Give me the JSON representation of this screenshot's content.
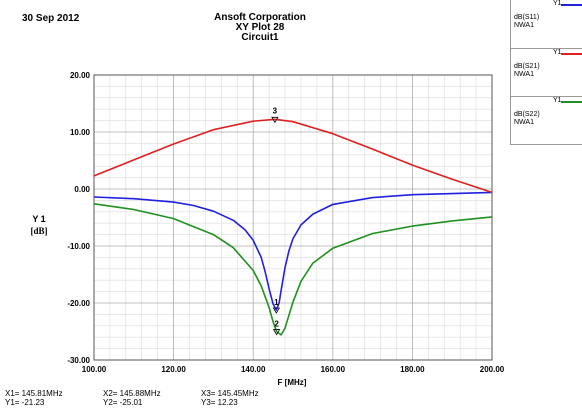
{
  "header": {
    "date": "30 Sep 2012",
    "company": "Ansoft Corporation",
    "plot_name": "XY Plot 28",
    "circuit": "Circuit1"
  },
  "legend": [
    {
      "axis": "Y1",
      "trace": "dB(S11)",
      "source": "NWA1",
      "color": "#2020e0"
    },
    {
      "axis": "Y1",
      "trace": "dB(S21)",
      "source": "NWA1",
      "color": "#e02020"
    },
    {
      "axis": "Y1",
      "trace": "dB(S22)",
      "source": "NWA1",
      "color": "#209020"
    }
  ],
  "markers": [
    {
      "x_label": "X1= 145.81MHz",
      "y_label": "Y1= -21.23",
      "id": "1"
    },
    {
      "x_label": "X2= 145.88MHz",
      "y_label": "Y2= -25.01",
      "id": "2"
    },
    {
      "x_label": "X3= 145.45MHz",
      "y_label": "Y3= 12.23",
      "id": "3"
    }
  ],
  "chart_data": {
    "type": "line",
    "xlabel": "F [MHz]",
    "ylabel": "Y 1",
    "ylabel_unit": "[dB]",
    "xlim": [
      100,
      200
    ],
    "ylim": [
      -30,
      20
    ],
    "x_ticks": [
      "100.00",
      "120.00",
      "140.00",
      "160.00",
      "180.00",
      "200.00"
    ],
    "y_ticks": [
      "20.00",
      "10.00",
      "0.00",
      "-10.00",
      "-20.00",
      "-30.00"
    ],
    "grid": true,
    "series": [
      {
        "name": "dB(S11)",
        "color": "#2020e0",
        "x": [
          100,
          110,
          120,
          125,
          130,
          135,
          138,
          140,
          142,
          143,
          144,
          145,
          145.81,
          146.5,
          147,
          148,
          149,
          150,
          152,
          155,
          160,
          170,
          180,
          190,
          200
        ],
        "y": [
          -1.4,
          -1.7,
          -2.3,
          -2.9,
          -3.9,
          -5.5,
          -7.2,
          -9.0,
          -12.0,
          -14.5,
          -17.5,
          -20.2,
          -21.23,
          -20.0,
          -17.8,
          -13.8,
          -10.8,
          -8.7,
          -6.3,
          -4.4,
          -2.7,
          -1.5,
          -1.0,
          -0.8,
          -0.6
        ]
      },
      {
        "name": "dB(S21)",
        "color": "#e02020",
        "x": [
          100,
          110,
          120,
          130,
          140,
          145.45,
          150,
          160,
          170,
          180,
          190,
          200
        ],
        "y": [
          2.3,
          5.1,
          7.9,
          10.4,
          11.9,
          12.23,
          11.8,
          9.7,
          7.0,
          4.2,
          1.7,
          -0.6
        ]
      },
      {
        "name": "dB(S22)",
        "color": "#209020",
        "x": [
          100,
          110,
          120,
          130,
          135,
          140,
          142,
          144,
          145,
          145.88,
          147,
          148,
          150,
          152,
          155,
          160,
          170,
          180,
          190,
          200
        ],
        "y": [
          -2.6,
          -3.6,
          -5.2,
          -8.0,
          -10.3,
          -14.3,
          -17.0,
          -20.8,
          -23.3,
          -25.01,
          -25.6,
          -24.4,
          -19.8,
          -16.2,
          -13.0,
          -10.4,
          -7.8,
          -6.5,
          -5.6,
          -4.9
        ]
      }
    ],
    "marker_points": [
      {
        "label": "1",
        "x": 145.81,
        "y": -21.23
      },
      {
        "label": "2",
        "x": 145.88,
        "y": -25.01
      },
      {
        "label": "3",
        "x": 145.45,
        "y": 12.23
      }
    ]
  }
}
